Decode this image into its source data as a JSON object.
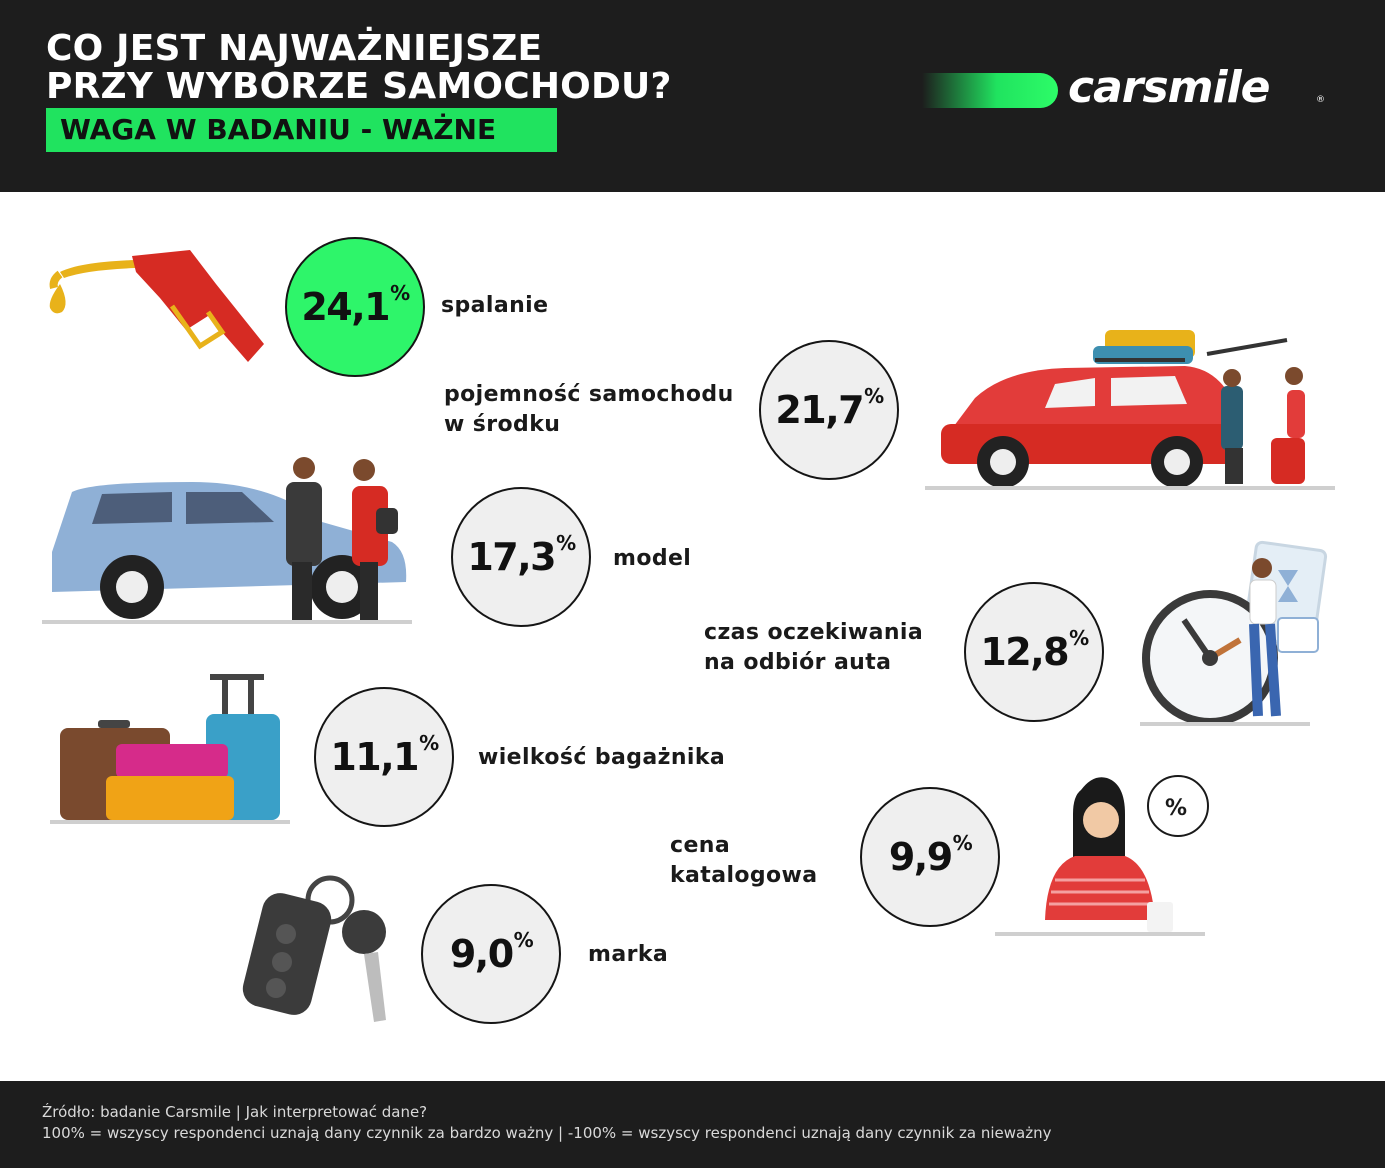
{
  "header": {
    "title_line1": "CO JEST NAJWAŻNIEJSZE",
    "title_line2": "PRZY WYBORZE SAMOCHODU?",
    "badge": "WAGA W BADANIU - WAŻNE",
    "logo": "carsmile",
    "logo_mark": "®"
  },
  "chart_data": {
    "type": "bubble-list",
    "unit": "%",
    "categories": [
      "spalanie",
      "pojemność samochodu w środku",
      "model",
      "czas oczekiwania na odbiór auta",
      "wielkość bagażnika",
      "cena katalogowa",
      "marka"
    ],
    "values": [
      24.1,
      21.7,
      17.3,
      12.8,
      11.1,
      9.9,
      9.0
    ],
    "value_labels": [
      "24,1",
      "21,7",
      "17,3",
      "12,8",
      "11,1",
      "9,9",
      "9,0"
    ],
    "label_lines": [
      [
        "spalanie"
      ],
      [
        "pojemność samochodu",
        "w środku"
      ],
      [
        "model"
      ],
      [
        "czas oczekiwania",
        "na odbiór auta"
      ],
      [
        "wielkość bagażnika"
      ],
      [
        "cena",
        "katalogowa"
      ],
      [
        "marka"
      ]
    ],
    "pct_sign": "%",
    "highlight_color": "#2ef56a",
    "circle_color": "#efefef"
  },
  "illustrations": [
    "fuel-nozzle-icon",
    "family-car-icon",
    "car-dealer-icon",
    "waiting-clock-icon",
    "luggage-icon",
    "shopper-discount-icon",
    "car-keys-icon"
  ],
  "footer": {
    "line1": "Źródło: badanie Carsmile  |  Jak interpretować dane?",
    "line2": "100% = wszyscy respondenci uznają dany czynnik za bardzo ważny |  -100% = wszyscy respondenci uznają dany czynnik za nieważny"
  },
  "colors": {
    "dark": "#1d1d1d",
    "accent": "#20e35f"
  }
}
